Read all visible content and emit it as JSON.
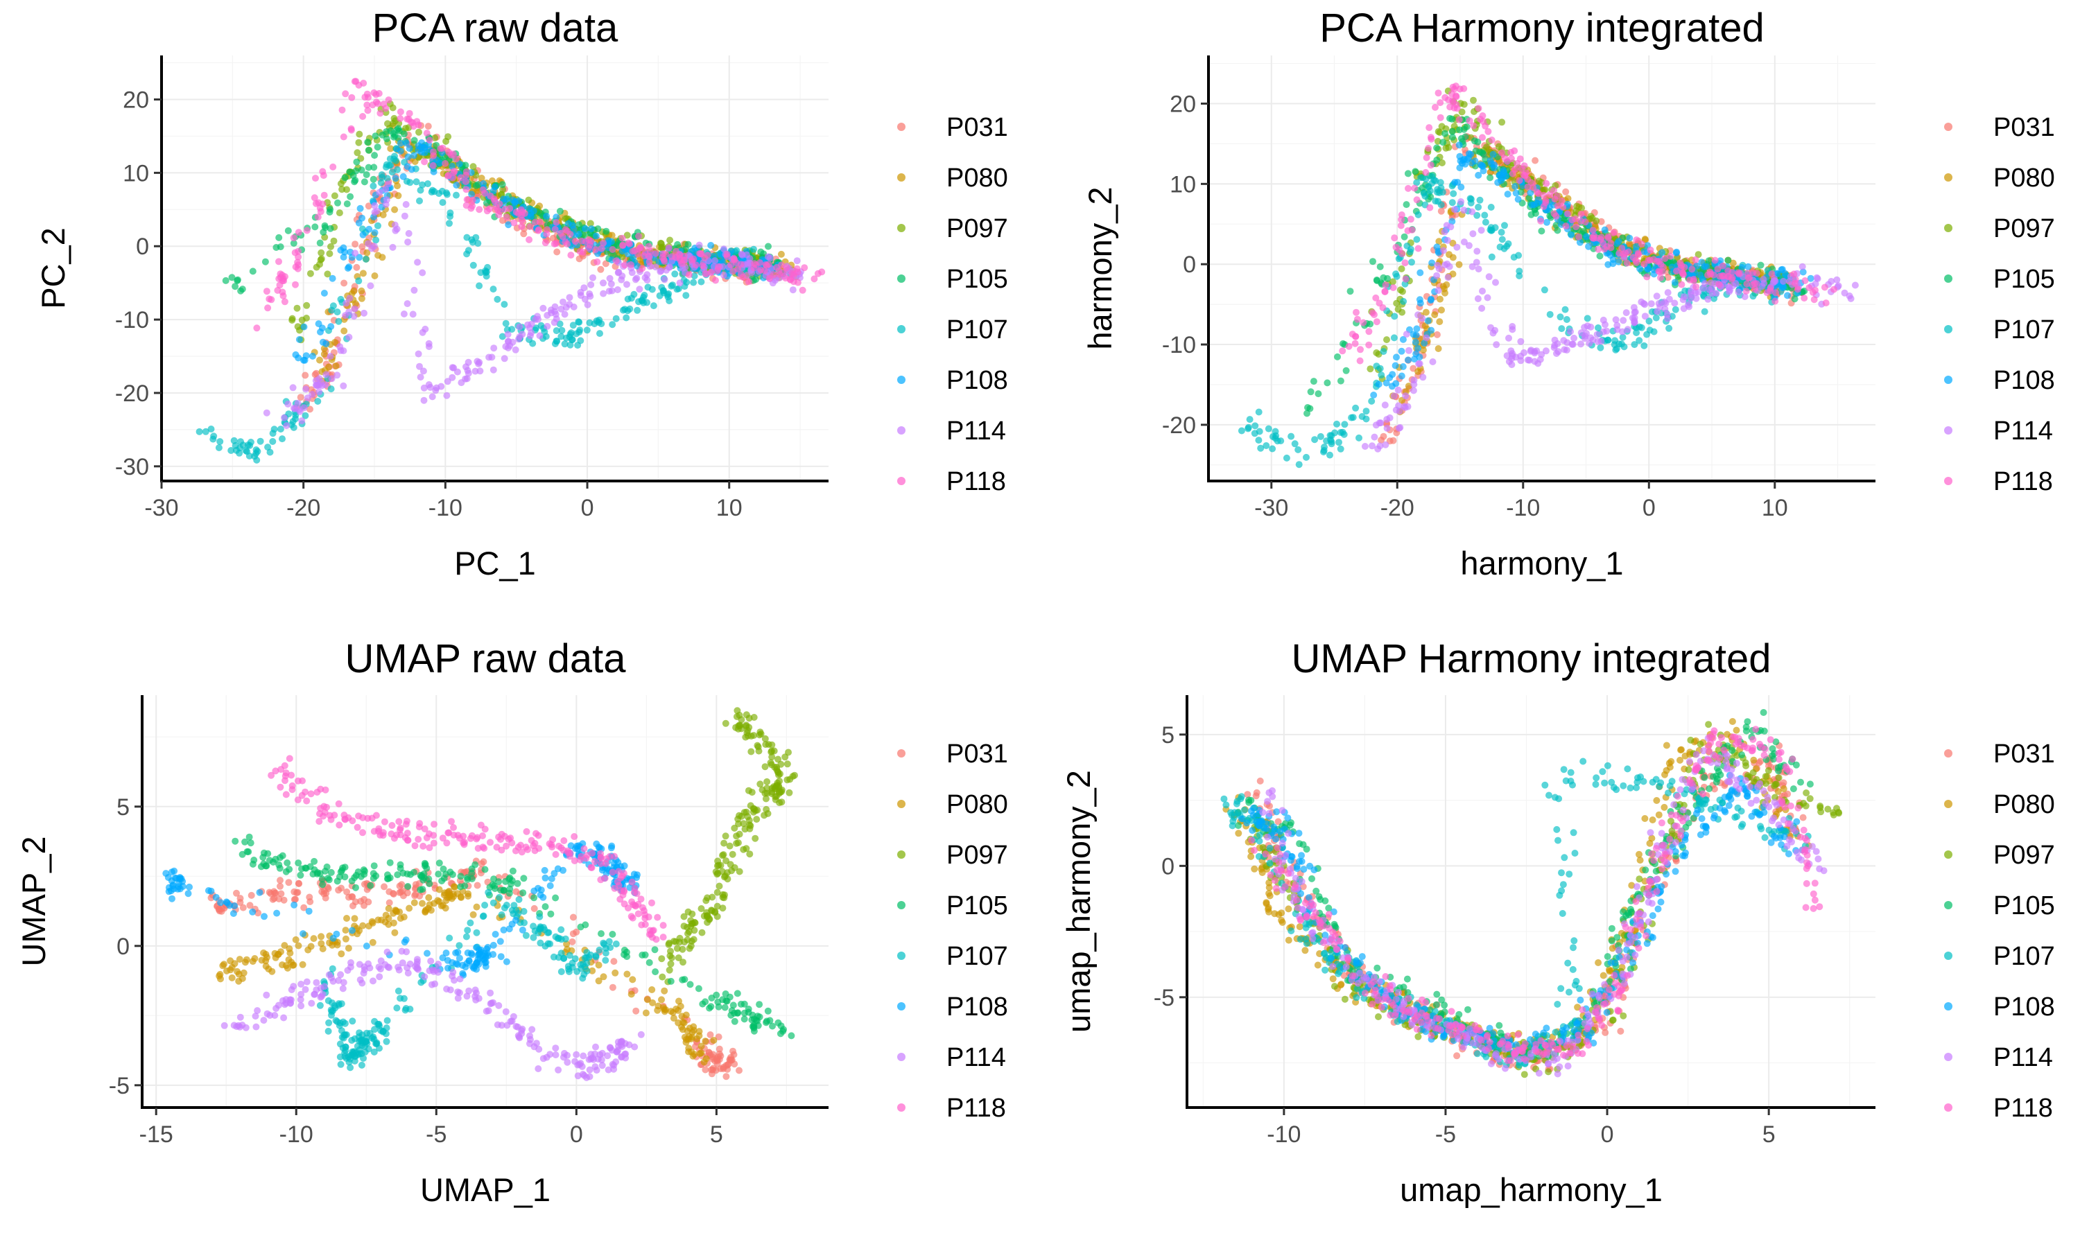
{
  "legend": {
    "labels": [
      "P031",
      "P080",
      "P097",
      "P105",
      "P107",
      "P108",
      "P114",
      "P118"
    ],
    "colors": [
      "#F8766D",
      "#CD9600",
      "#7CAE00",
      "#00BE67",
      "#00BFC4",
      "#00A9FF",
      "#C77CFF",
      "#FF61CC"
    ]
  },
  "chart_data": [
    {
      "type": "scatter",
      "title": "PCA raw data",
      "xlabel": "PC_1",
      "ylabel": "PC_2",
      "xlim": [
        -30,
        17
      ],
      "ylim": [
        -32,
        26
      ],
      "xticks": [
        -30,
        -20,
        -10,
        0,
        10
      ],
      "yticks": [
        -30,
        -20,
        -10,
        0,
        10,
        20
      ],
      "grid": true,
      "legend_position": "right",
      "series": [
        {
          "name": "P031",
          "x": [
            -20,
            -18,
            -15,
            -12,
            -8,
            -4,
            0,
            4,
            8,
            11,
            13
          ],
          "y": [
            -22,
            -15,
            5,
            15,
            8,
            3,
            -1,
            -2,
            -2,
            -3,
            -3
          ]
        },
        {
          "name": "P080",
          "x": [
            -19,
            -16,
            -13,
            -9,
            -5,
            -1,
            3,
            7,
            10,
            12,
            14
          ],
          "y": [
            -18,
            -5,
            14,
            10,
            5,
            2,
            -1,
            -2,
            -2,
            -3,
            -3
          ]
        },
        {
          "name": "P097",
          "x": [
            -21,
            -17,
            -14,
            -10,
            -6,
            -2,
            2,
            6,
            9,
            11,
            13
          ],
          "y": [
            -14,
            8,
            18,
            12,
            6,
            3,
            0,
            -1,
            -2,
            -2,
            -3
          ]
        },
        {
          "name": "P105",
          "x": [
            -25,
            -18,
            -14,
            -10,
            -6,
            -2,
            2,
            6,
            9,
            12,
            14
          ],
          "y": [
            -5,
            4,
            16,
            12,
            6,
            3,
            0,
            -1,
            -2,
            -2,
            -3
          ]
        },
        {
          "name": "P107",
          "x": [
            -28,
            -23,
            -19,
            -14,
            -10,
            -5,
            -1,
            3,
            6,
            9,
            12
          ],
          "y": [
            -25,
            -28,
            -20,
            12,
            6,
            -12,
            -12,
            -8,
            -5,
            -2,
            -2
          ]
        },
        {
          "name": "P108",
          "x": [
            -20,
            -16,
            -12,
            -8,
            -4,
            0,
            3,
            6,
            9,
            11,
            13
          ],
          "y": [
            -16,
            2,
            14,
            8,
            4,
            1,
            -1,
            -2,
            -2,
            -2,
            -3
          ]
        },
        {
          "name": "P114",
          "x": [
            -22,
            -18,
            -14,
            -11,
            -7,
            -3,
            1,
            5,
            9,
            12,
            15
          ],
          "y": [
            -24,
            -18,
            10,
            -20,
            -15,
            -10,
            -5,
            -3,
            -2,
            -3,
            -4
          ]
        },
        {
          "name": "P118",
          "x": [
            -23,
            -20,
            -16,
            -12,
            -8,
            -4,
            0,
            4,
            8,
            12,
            16
          ],
          "y": [
            -12,
            0,
            22,
            16,
            7,
            3,
            0,
            -1,
            -2,
            -3,
            -4
          ]
        }
      ]
    },
    {
      "type": "scatter",
      "title": "PCA Harmony integrated",
      "xlabel": "harmony_1",
      "ylabel": "harmony_2",
      "xlim": [
        -35,
        18
      ],
      "ylim": [
        -27,
        26
      ],
      "xticks": [
        -30,
        -20,
        -10,
        0,
        10
      ],
      "yticks": [
        -20,
        -10,
        0,
        10,
        20
      ],
      "grid": true,
      "legend_position": "right",
      "series": [
        {
          "name": "P031",
          "x": [
            -21,
            -18,
            -15,
            -11,
            -7,
            -3,
            1,
            5,
            9,
            12
          ],
          "y": [
            -22,
            -10,
            16,
            12,
            8,
            3,
            0,
            -1,
            -2,
            -3
          ]
        },
        {
          "name": "P080",
          "x": [
            -20,
            -17,
            -14,
            -10,
            -6,
            -2,
            2,
            6,
            9,
            11
          ],
          "y": [
            -18,
            -5,
            14,
            10,
            6,
            2,
            0,
            -1,
            -2,
            -2
          ]
        },
        {
          "name": "P097",
          "x": [
            -22,
            -18,
            -15,
            -11,
            -7,
            -3,
            1,
            5,
            8,
            11
          ],
          "y": [
            -15,
            10,
            20,
            12,
            7,
            3,
            0,
            -1,
            -2,
            -2
          ]
        },
        {
          "name": "P105",
          "x": [
            -27,
            -20,
            -16,
            -12,
            -8,
            -4,
            0,
            4,
            8,
            12
          ],
          "y": [
            -18,
            2,
            18,
            12,
            6,
            3,
            0,
            -1,
            -2,
            -3
          ]
        },
        {
          "name": "P107",
          "x": [
            -32,
            -27,
            -22,
            -18,
            -14,
            -8,
            -2,
            3,
            7,
            11
          ],
          "y": [
            -20,
            -24,
            -18,
            10,
            8,
            -6,
            -10,
            -4,
            -2,
            -3
          ]
        },
        {
          "name": "P108",
          "x": [
            -21,
            -18,
            -15,
            -11,
            -7,
            -3,
            1,
            5,
            9,
            12
          ],
          "y": [
            -16,
            -8,
            14,
            10,
            6,
            2,
            0,
            -1,
            -2,
            -2
          ]
        },
        {
          "name": "P114",
          "x": [
            -23,
            -19,
            -15,
            -11,
            -7,
            -3,
            1,
            5,
            10,
            17
          ],
          "y": [
            -24,
            -16,
            8,
            -12,
            -10,
            -8,
            -5,
            -3,
            -2,
            -4
          ]
        },
        {
          "name": "P118",
          "x": [
            -24,
            -20,
            -16,
            -12,
            -8,
            -4,
            0,
            4,
            8,
            14
          ],
          "y": [
            -12,
            0,
            22,
            15,
            8,
            3,
            0,
            -1,
            -2,
            -3
          ]
        }
      ]
    },
    {
      "type": "scatter",
      "title": "UMAP raw data",
      "xlabel": "UMAP_1",
      "ylabel": "UMAP_2",
      "xlim": [
        -15.5,
        9
      ],
      "ylim": [
        -5.8,
        9
      ],
      "xticks": [
        -15,
        -10,
        -5,
        0,
        5
      ],
      "yticks": [
        -5,
        0,
        5
      ],
      "grid": true,
      "legend_position": "right",
      "series": [
        {
          "name": "P031",
          "x": [
            -13,
            -11,
            -9,
            -7,
            -5,
            -3,
            4.5,
            5,
            5.5
          ],
          "y": [
            1.5,
            1.8,
            2.0,
            1.8,
            2.2,
            2.5,
            -3.5,
            -4.5,
            -4.0
          ]
        },
        {
          "name": "P080",
          "x": [
            -12.8,
            -11,
            -9,
            -7,
            -5,
            -4,
            3,
            4,
            4.5
          ],
          "y": [
            -1.0,
            -0.5,
            0.0,
            0.8,
            1.6,
            2.0,
            -2.0,
            -3.0,
            -4.0
          ]
        },
        {
          "name": "P097",
          "x": [
            3,
            4,
            5,
            5.5,
            6,
            7,
            7.5,
            6.5,
            5.5
          ],
          "y": [
            -1.0,
            0.5,
            1.5,
            3.0,
            4.5,
            5.5,
            6.0,
            7.5,
            8.3
          ]
        },
        {
          "name": "P105",
          "x": [
            -12,
            -10,
            -8,
            -6,
            -4,
            -2,
            5,
            6,
            7.5
          ],
          "y": [
            3.5,
            2.8,
            2.5,
            2.6,
            2.5,
            2.2,
            -2.0,
            -2.5,
            -3.0
          ]
        },
        {
          "name": "P107",
          "x": [
            -9,
            -8.5,
            -8,
            -7.5,
            -7,
            -3,
            -1,
            0,
            1
          ],
          "y": [
            -1.0,
            -3.0,
            -4.0,
            -3.5,
            -3.0,
            1.5,
            0.5,
            -1.0,
            0.0
          ]
        },
        {
          "name": "P108",
          "x": [
            -14.5,
            -14,
            -4.5,
            -3.5,
            -3,
            0,
            1,
            1.5,
            2
          ],
          "y": [
            2.3,
            2.2,
            -0.6,
            -0.5,
            -0.2,
            3.5,
            3.2,
            2.5,
            2.2
          ]
        },
        {
          "name": "P114",
          "x": [
            -12.5,
            -10,
            -8,
            -6,
            -4,
            -2,
            0,
            1,
            2
          ],
          "y": [
            -3.0,
            -2.0,
            -1.0,
            -0.5,
            -1.5,
            -3.0,
            -4.5,
            -4.0,
            -3.5
          ]
        },
        {
          "name": "P118",
          "x": [
            -10.5,
            -9,
            -7,
            -5,
            -3,
            -1,
            1,
            2,
            3
          ],
          "y": [
            6.5,
            5.0,
            4.2,
            4.0,
            3.8,
            3.5,
            3.0,
            1.5,
            0.5
          ]
        }
      ]
    },
    {
      "type": "scatter",
      "title": "UMAP Harmony integrated",
      "xlabel": "umap_harmony_1",
      "ylabel": "umap_harmony_2",
      "xlim": [
        -13,
        8.3
      ],
      "ylim": [
        -9.2,
        6.5
      ],
      "xticks": [
        -10,
        -5,
        0,
        5
      ],
      "yticks": [
        -5,
        0,
        5
      ],
      "grid": true,
      "legend_position": "right",
      "series": [
        {
          "name": "P031",
          "x": [
            -11,
            -10,
            -8,
            -6,
            -4,
            -2,
            0,
            1,
            3,
            5,
            6
          ],
          "y": [
            3.0,
            0.0,
            -4.0,
            -5.5,
            -7.0,
            -7.5,
            -6.0,
            -2.0,
            3.0,
            4.0,
            1.0
          ]
        },
        {
          "name": "P080",
          "x": [
            -11.5,
            -10.5,
            -9,
            -7,
            -5,
            -3,
            -1,
            0.5,
            2,
            4,
            6.5
          ],
          "y": [
            2.5,
            -1.0,
            -3.5,
            -5.0,
            -6.0,
            -7.0,
            -6.5,
            -3.0,
            4.0,
            5.0,
            0.0
          ]
        },
        {
          "name": "P097",
          "x": [
            -11,
            -10,
            -8,
            -6,
            -4,
            -2,
            0,
            1.5,
            3,
            5,
            7
          ],
          "y": [
            1.5,
            -0.5,
            -4.5,
            -6.0,
            -6.5,
            -7.5,
            -5.5,
            0.0,
            5.0,
            3.0,
            2.0
          ]
        },
        {
          "name": "P105",
          "x": [
            -11.2,
            -9.5,
            -8,
            -6,
            -4,
            -2,
            0,
            1,
            2.5,
            4.5,
            6
          ],
          "y": [
            2.0,
            1.0,
            -4.0,
            -5.0,
            -6.5,
            -7.0,
            -5.0,
            -1.0,
            2.0,
            5.5,
            3.0
          ]
        },
        {
          "name": "P107",
          "x": [
            -11.8,
            -10.5,
            -9,
            -7,
            -5,
            -3,
            -1,
            -1.5,
            2,
            4,
            6
          ],
          "y": [
            2.8,
            0.5,
            -3.0,
            -5.0,
            -6.0,
            -7.5,
            -6.0,
            3.5,
            3.0,
            2.0,
            1.0
          ]
        },
        {
          "name": "P108",
          "x": [
            -11,
            -10,
            -8.5,
            -6.5,
            -4.5,
            -2.5,
            -0.5,
            1,
            2.5,
            4,
            6
          ],
          "y": [
            2.0,
            1.5,
            -3.0,
            -5.5,
            -6.5,
            -7.0,
            -6.0,
            -2.5,
            1.0,
            3.0,
            0.5
          ]
        },
        {
          "name": "P114",
          "x": [
            -10.5,
            -9.5,
            -7.5,
            -5.5,
            -3.5,
            -1.5,
            0.5,
            1.5,
            3,
            5,
            7
          ],
          "y": [
            3.0,
            -1.5,
            -4.5,
            -6.0,
            -7.0,
            -7.5,
            -4.0,
            0.0,
            4.5,
            2.5,
            -1.0
          ]
        },
        {
          "name": "P118",
          "x": [
            -11,
            -9,
            -7,
            -5,
            -3,
            -1,
            0.5,
            2,
            3.5,
            5.5,
            6.5
          ],
          "y": [
            1.0,
            -2.0,
            -5.0,
            -6.0,
            -7.0,
            -7.0,
            -4.5,
            1.5,
            5.0,
            4.0,
            -2.0
          ]
        }
      ]
    }
  ]
}
